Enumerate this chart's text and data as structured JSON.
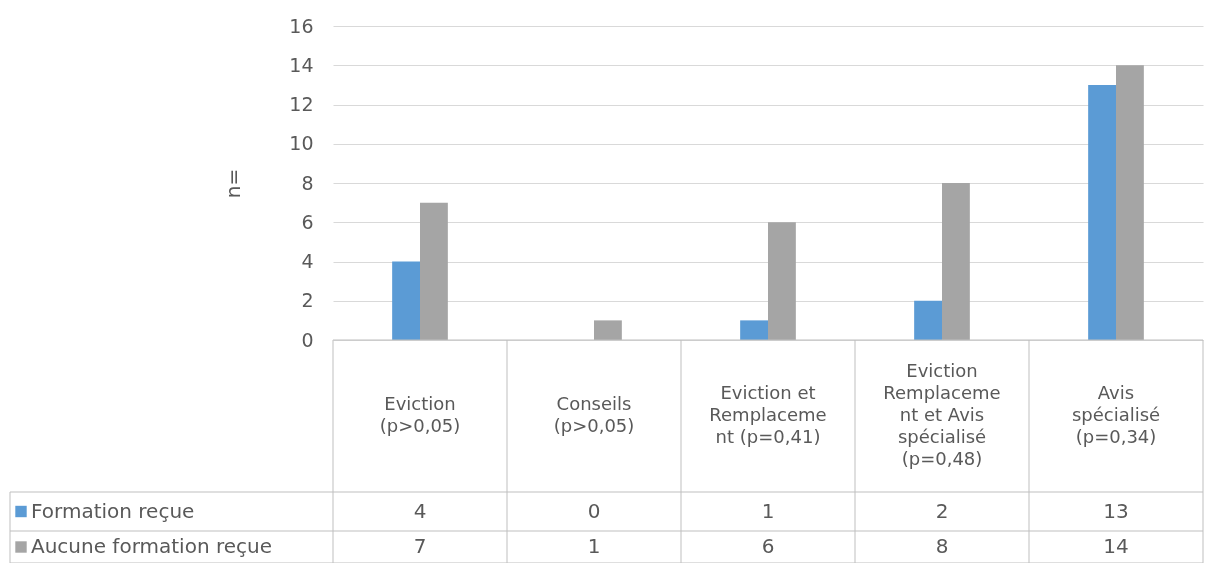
{
  "chart_data": {
    "type": "bar",
    "ylabel": "n=",
    "categories": [
      "Eviction\n(p>0,05)",
      "Conseils\n(p>0,05)",
      "Eviction et\nRemplaceme\nnt (p=0,41)",
      "Eviction\nRemplaceme\nnt et Avis\nspécialisé\n(p=0,48)",
      "Avis\nspécialisé\n(p=0,34)"
    ],
    "series": [
      {
        "name": "Formation reçue",
        "color": "#5b9bd5",
        "values": [
          4,
          0,
          1,
          2,
          13
        ]
      },
      {
        "name": "Aucune formation reçue",
        "color": "#a5a5a5",
        "values": [
          7,
          1,
          6,
          8,
          14
        ]
      }
    ],
    "ylim": [
      0,
      16
    ],
    "yticks": [
      0,
      2,
      4,
      6,
      8,
      10,
      12,
      14,
      16
    ],
    "grid": "y",
    "legend": "bottom",
    "data_labels": true
  }
}
